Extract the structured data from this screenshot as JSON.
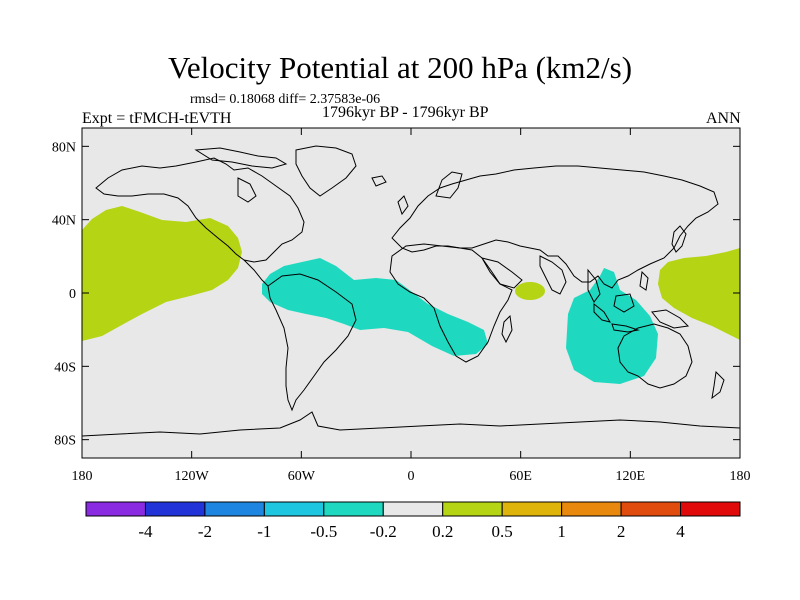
{
  "title": "Velocity Potential at 200 hPa (km2/s)",
  "stats": "rmsd= 0.18068 diff= 2.37583e-06",
  "left_label": "Expt = tFMCH-tEVTH",
  "center_label": "1796kyr BP - 1796kyr BP",
  "right_label": "ANN",
  "lat_ticks": [
    {
      "label": "80N",
      "value": 80
    },
    {
      "label": "40N",
      "value": 40
    },
    {
      "label": "0",
      "value": 0
    },
    {
      "label": "40S",
      "value": -40
    },
    {
      "label": "80S",
      "value": -80
    }
  ],
  "lon_ticks": [
    {
      "label": "180",
      "value": -180
    },
    {
      "label": "120W",
      "value": -120
    },
    {
      "label": "60W",
      "value": -60
    },
    {
      "label": "0",
      "value": 0
    },
    {
      "label": "60E",
      "value": 60
    },
    {
      "label": "120E",
      "value": 120
    },
    {
      "label": "180",
      "value": 180
    }
  ],
  "colorbar": {
    "colors": [
      "#8a2be2",
      "#2233d8",
      "#1e86e0",
      "#1ec6e0",
      "#1ed9c0",
      "#e8e8e8",
      "#b4d414",
      "#dfb40a",
      "#e8880c",
      "#e04c0e",
      "#e00a0a"
    ],
    "labels": [
      "-4",
      "-2",
      "-1",
      "-0.5",
      "-0.2",
      "0.2",
      "0.5",
      "1",
      "2",
      "4"
    ]
  },
  "colors": {
    "background": "#e8e8e8",
    "positive": "#b4d414",
    "negative": "#1ed9c0"
  }
}
